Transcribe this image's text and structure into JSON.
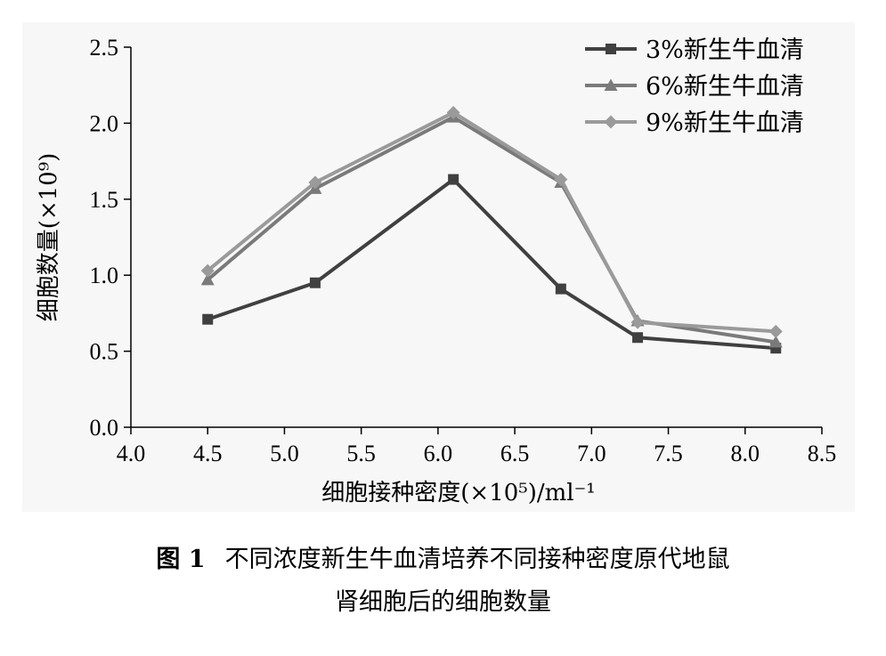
{
  "chart_data": {
    "type": "line",
    "xlabel": "细胞接种密度(×10⁵)/ml⁻¹",
    "ylabel": "细胞数量(×10⁹)",
    "xlim": [
      4.0,
      8.5
    ],
    "ylim": [
      0.0,
      2.5
    ],
    "x_ticks": [
      "4.0",
      "4.5",
      "5.0",
      "5.5",
      "6.0",
      "6.5",
      "7.0",
      "7.5",
      "8.0",
      "8.5"
    ],
    "y_ticks": [
      "0.0",
      "0.5",
      "1.0",
      "1.5",
      "2.0",
      "2.5"
    ],
    "grid": false,
    "legend_position": "top-right",
    "x": [
      4.5,
      5.2,
      6.1,
      6.8,
      7.3,
      8.2
    ],
    "series": [
      {
        "name": "3%新生牛血清",
        "marker": "square",
        "color": "#404040",
        "values": [
          0.71,
          0.95,
          1.63,
          0.91,
          0.59,
          0.52
        ]
      },
      {
        "name": "6%新生牛血清",
        "marker": "triangle",
        "color": "#7a7a7a",
        "values": [
          0.97,
          1.57,
          2.04,
          1.61,
          0.7,
          0.56
        ]
      },
      {
        "name": "9%新生牛血清",
        "marker": "diamond",
        "color": "#9a9a9a",
        "values": [
          1.03,
          1.61,
          2.07,
          1.63,
          0.69,
          0.63
        ]
      }
    ]
  },
  "caption": {
    "figure_number": "图 1",
    "line1": "不同浓度新生牛血清培养不同接种密度原代地鼠",
    "line2": "肾细胞后的细胞数量"
  }
}
